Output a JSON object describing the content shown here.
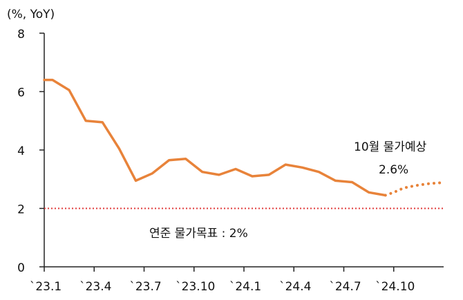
{
  "chart_data": {
    "type": "line",
    "y_unit_label": "(%, YoY)",
    "ylim": [
      0,
      8
    ],
    "y_ticks": [
      0,
      2,
      4,
      6,
      8
    ],
    "x_tick_labels": [
      "`23.1",
      "`23.4",
      "`23.7",
      "`23.10",
      "`24.1",
      "`24.4",
      "`24.7",
      "`24.10"
    ],
    "x_tick_positions": [
      0,
      3,
      6,
      9,
      12,
      15,
      18,
      21
    ],
    "x_range": [
      0,
      24
    ],
    "series": [
      {
        "style": "solid",
        "color": "#e8833a",
        "x": [
          0,
          0.5,
          1.5,
          2.5,
          3.5,
          4.5,
          5.5,
          6.5,
          7.5,
          8.5,
          9.5,
          10.5,
          11.5,
          12.5,
          13.5,
          14.5,
          15.5,
          16.5,
          17.5,
          18.5,
          19.5,
          20.5
        ],
        "values": [
          6.4,
          6.4,
          6.05,
          5.0,
          4.95,
          4.05,
          2.95,
          3.2,
          3.65,
          3.7,
          3.25,
          3.15,
          3.35,
          3.1,
          3.15,
          3.5,
          3.4,
          3.25,
          2.95,
          2.9,
          2.55,
          2.45
        ]
      },
      {
        "style": "dotted",
        "color": "#e8833a",
        "x": [
          20.5,
          21.0,
          21.6,
          22.3,
          23.0,
          23.6,
          24.0
        ],
        "values": [
          2.45,
          2.55,
          2.7,
          2.78,
          2.84,
          2.87,
          2.88
        ]
      }
    ],
    "reference_line": {
      "value": 2,
      "style": "dotted",
      "color": "#e03b3b"
    },
    "annotations": {
      "target": "연준 물가목표 : 2%",
      "forecast_title": "10월 물가예상",
      "forecast_value": "2.6%"
    }
  }
}
